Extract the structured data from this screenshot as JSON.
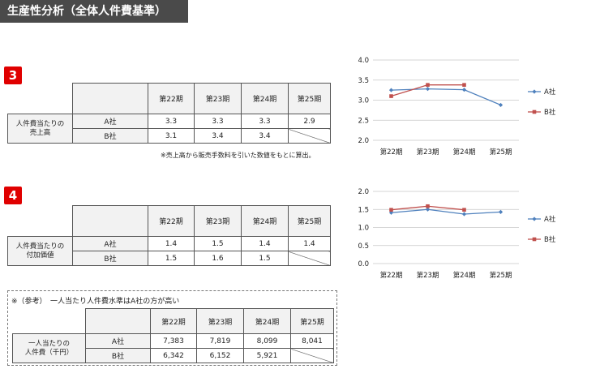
{
  "header": {
    "title": "生産性分析（全体人件費基準）"
  },
  "section3": {
    "badge": "3",
    "periods": [
      "第22期",
      "第23期",
      "第24期",
      "第25期"
    ],
    "row_label_1": "人件費当たりの",
    "row_label_2": "売上高",
    "companies": [
      "A社",
      "B社"
    ],
    "a_values": [
      "3.3",
      "3.3",
      "3.3",
      "2.9"
    ],
    "b_values": [
      "3.1",
      "3.4",
      "3.4"
    ],
    "note": "※売上高から販売手数料を引いた数値をもとに算出。"
  },
  "section4": {
    "badge": "4",
    "periods": [
      "第22期",
      "第23期",
      "第24期",
      "第25期"
    ],
    "row_label_1": "人件費当たりの",
    "row_label_2": "付加価値",
    "companies": [
      "A社",
      "B社"
    ],
    "a_values": [
      "1.4",
      "1.5",
      "1.4",
      "1.4"
    ],
    "b_values": [
      "1.5",
      "1.6",
      "1.5"
    ]
  },
  "reference": {
    "title": "※（参考）　一人当たり人件費水準はA社の方が高い",
    "periods": [
      "第22期",
      "第23期",
      "第24期",
      "第25期"
    ],
    "row_label_1": "一人当たりの",
    "row_label_2": "人件費（千円）",
    "companies": [
      "A社",
      "B社"
    ],
    "a_values": [
      "7,383",
      "7,819",
      "8,099",
      "8,041"
    ],
    "b_values": [
      "6,342",
      "6,152",
      "5,921"
    ]
  },
  "chart_data": [
    {
      "type": "line",
      "categories": [
        "第22期",
        "第23期",
        "第24期",
        "第25期"
      ],
      "series": [
        {
          "name": "A社",
          "color": "#4f81bd",
          "values": [
            3.25,
            3.28,
            3.26,
            2.88
          ]
        },
        {
          "name": "B社",
          "color": "#c0504d",
          "values": [
            3.1,
            3.38,
            3.38,
            null
          ]
        }
      ],
      "ylim": [
        2.0,
        4.0
      ],
      "yticks": [
        "2.0",
        "2.5",
        "3.0",
        "3.5",
        "4.0"
      ],
      "grid": true,
      "legend": "right"
    },
    {
      "type": "line",
      "categories": [
        "第22期",
        "第23期",
        "第24期",
        "第25期"
      ],
      "series": [
        {
          "name": "A社",
          "color": "#4f81bd",
          "values": [
            1.41,
            1.5,
            1.37,
            1.43
          ]
        },
        {
          "name": "B社",
          "color": "#c0504d",
          "values": [
            1.49,
            1.59,
            1.49,
            null
          ]
        }
      ],
      "ylim": [
        0.0,
        2.0
      ],
      "yticks": [
        "0.0",
        "0.5",
        "1.0",
        "1.5",
        "2.0"
      ],
      "grid": true,
      "legend": "right"
    }
  ]
}
